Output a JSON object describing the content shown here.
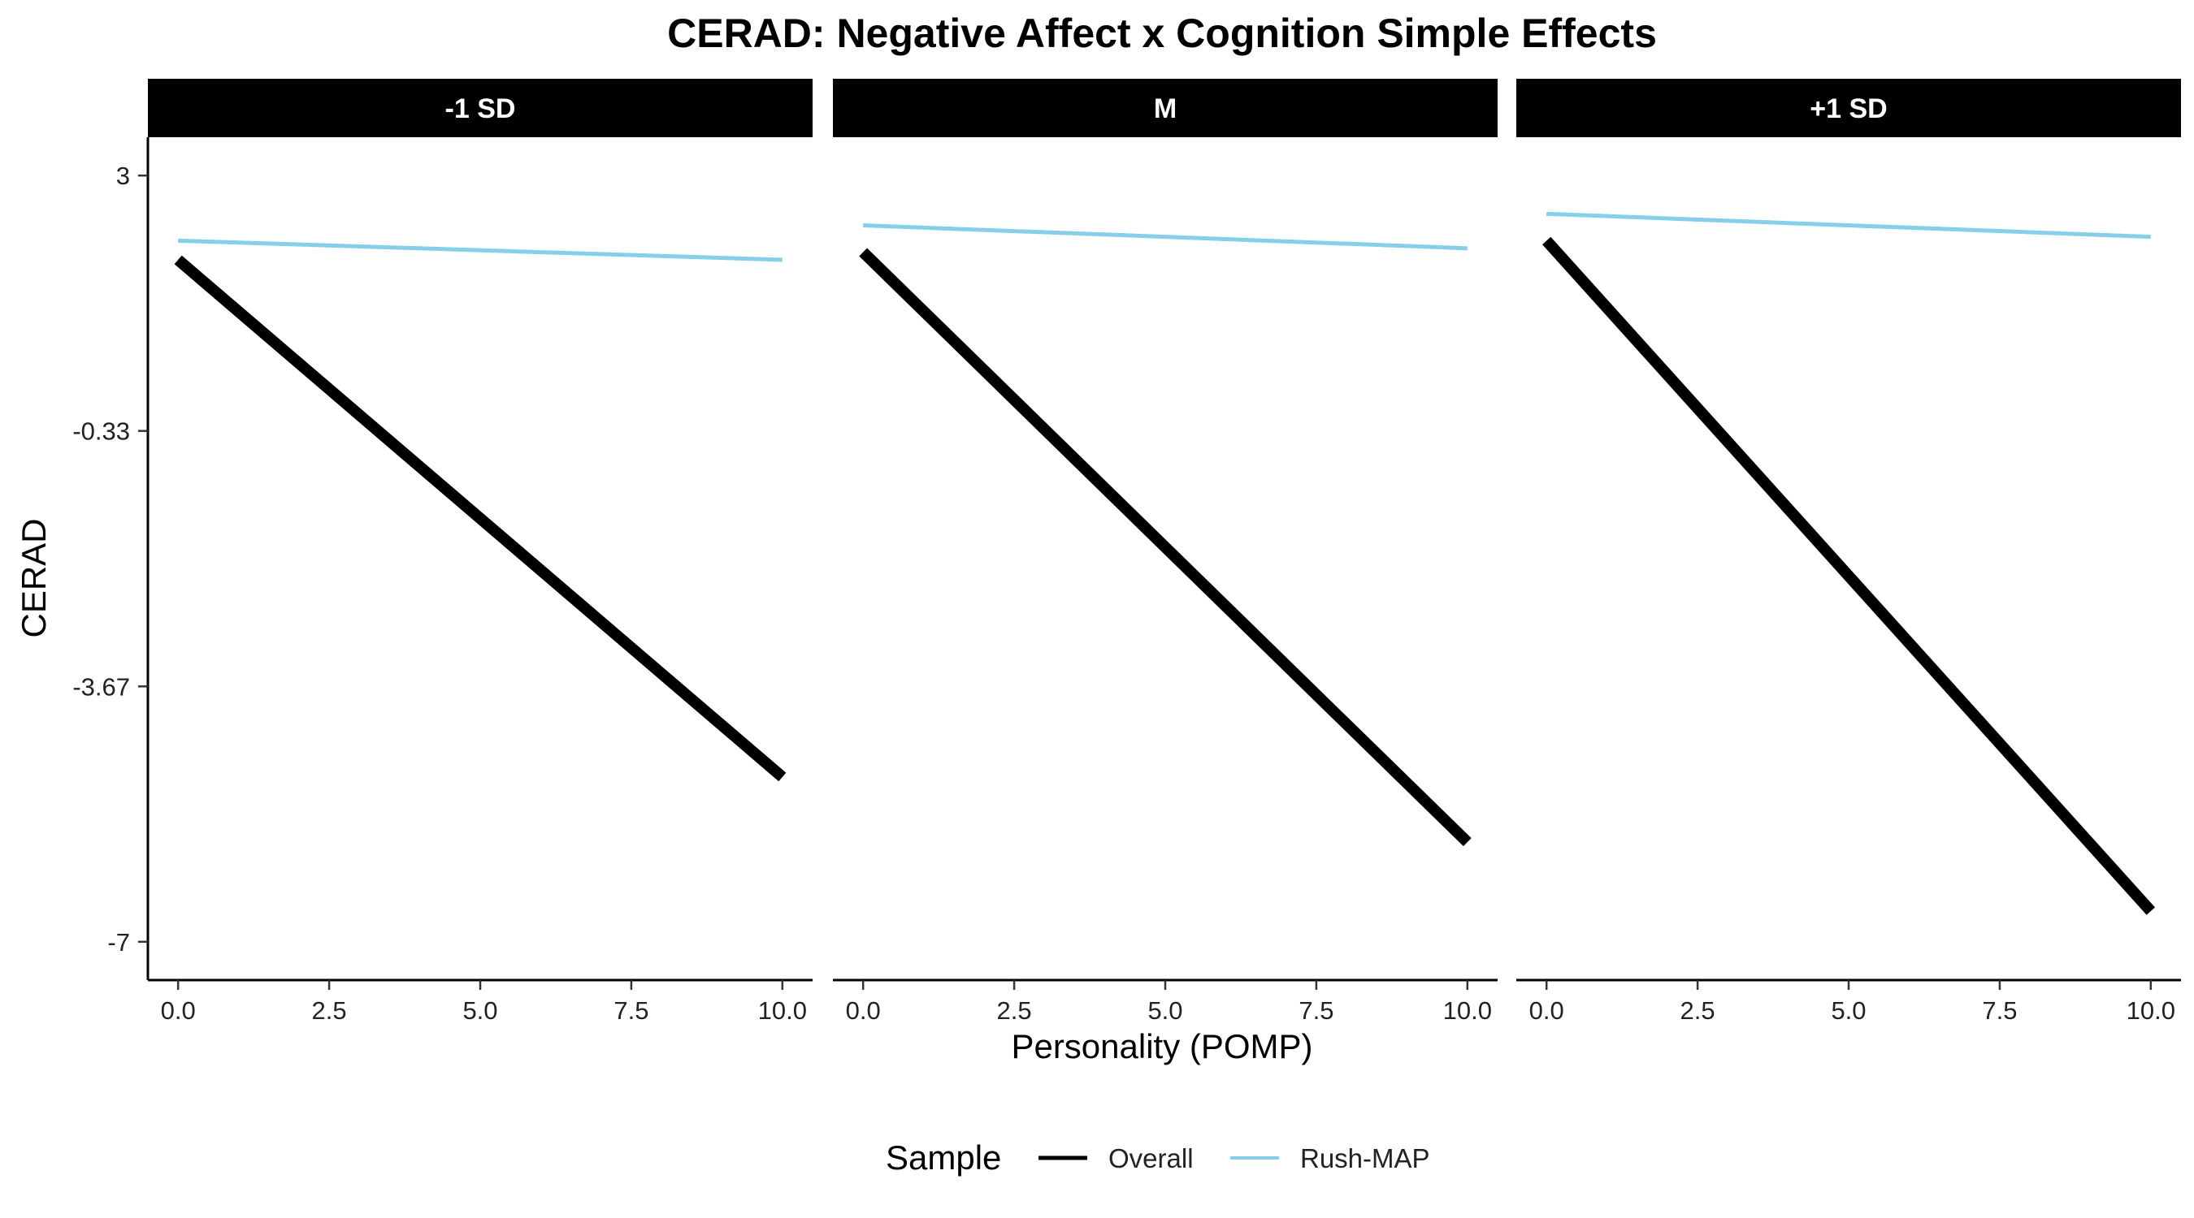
{
  "chart_data": {
    "type": "line",
    "title": "CERAD: Negative Affect x Cognition Simple Effects",
    "xlabel": "Personality (POMP)",
    "ylabel": "CERAD",
    "xlim": [
      -0.5,
      10.5
    ],
    "ylim": [
      -7.5,
      3.5
    ],
    "x_ticks": [
      "0.0",
      "2.5",
      "5.0",
      "7.5",
      "10.0"
    ],
    "x_tick_values": [
      0,
      2.5,
      5,
      7.5,
      10
    ],
    "y_ticks": [
      "3",
      "-0.33",
      "-3.67",
      "-7"
    ],
    "y_tick_values": [
      3,
      -0.333,
      -3.667,
      -7
    ],
    "legend": {
      "title": "Sample",
      "position": "bottom",
      "entries": [
        "Overall",
        "Rush-MAP"
      ]
    },
    "colors": {
      "Overall": "#000000",
      "Rush-MAP": "#87ceeb"
    },
    "panels": [
      {
        "label": "-1 SD",
        "series": [
          {
            "name": "Overall",
            "x": [
              0,
              10
            ],
            "y": [
              1.9,
              -4.85
            ]
          },
          {
            "name": "Rush-MAP",
            "x": [
              0,
              10
            ],
            "y": [
              2.15,
              1.9
            ]
          }
        ]
      },
      {
        "label": "M",
        "series": [
          {
            "name": "Overall",
            "x": [
              0,
              10
            ],
            "y": [
              2.0,
              -5.7
            ]
          },
          {
            "name": "Rush-MAP",
            "x": [
              0,
              10
            ],
            "y": [
              2.35,
              2.05
            ]
          }
        ]
      },
      {
        "label": "+1 SD",
        "series": [
          {
            "name": "Overall",
            "x": [
              0,
              10
            ],
            "y": [
              2.15,
              -6.6
            ]
          },
          {
            "name": "Rush-MAP",
            "x": [
              0,
              10
            ],
            "y": [
              2.5,
              2.2
            ]
          }
        ]
      }
    ]
  }
}
